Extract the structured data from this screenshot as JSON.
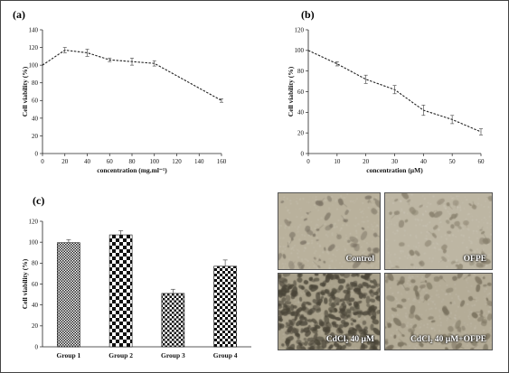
{
  "chart_data": [
    {
      "id": "a",
      "panel_label": "(a)",
      "type": "line",
      "xlabel": "concentration (mg.ml⁻¹)",
      "ylabel": "Cell viability (%)",
      "xlim": [
        0,
        160
      ],
      "ylim": [
        0,
        140
      ],
      "xticks": [
        0,
        20,
        40,
        60,
        80,
        100,
        120,
        140,
        160
      ],
      "yticks": [
        0,
        20,
        40,
        60,
        80,
        100,
        120,
        140
      ],
      "x": [
        0,
        20,
        40,
        60,
        80,
        100,
        120,
        160
      ],
      "y": [
        100,
        117,
        114,
        106,
        104,
        102,
        88,
        60
      ],
      "error": [
        0,
        3,
        4,
        2,
        4,
        3,
        0,
        2
      ],
      "line_style": "dashed",
      "grid": false
    },
    {
      "id": "b",
      "panel_label": "(b)",
      "type": "line",
      "xlabel": "concentration (µM)",
      "ylabel": "Cell viability (%)",
      "xlim": [
        0,
        60
      ],
      "ylim": [
        0,
        120
      ],
      "xticks": [
        0,
        10,
        20,
        30,
        40,
        50,
        60
      ],
      "yticks": [
        0,
        20,
        40,
        60,
        80,
        100,
        120
      ],
      "x": [
        0,
        10,
        20,
        30,
        40,
        50,
        60
      ],
      "y": [
        100,
        87,
        72,
        62,
        42,
        33,
        21
      ],
      "error": [
        0,
        2,
        4,
        4,
        5,
        4,
        3
      ],
      "line_style": "dashed",
      "grid": false
    },
    {
      "id": "c",
      "panel_label": "(c)",
      "type": "bar",
      "xlabel": "",
      "ylabel": "Cell viability (%)",
      "ylim": [
        0,
        120
      ],
      "yticks": [
        0,
        20,
        40,
        60,
        80,
        100,
        120
      ],
      "categories": [
        "Group 1",
        "Group 2",
        "Group 3",
        "Group 4"
      ],
      "values": [
        99.5,
        107,
        51,
        77
      ],
      "error": [
        3,
        4,
        4,
        6
      ],
      "fill_patterns": [
        "dots",
        "checker-large",
        "checker-small",
        "checker-medium"
      ],
      "grid": false
    }
  ],
  "micrographs": [
    {
      "label": "Control",
      "tone": "#b9b19c",
      "cell_color": "#7f7768",
      "density": 60
    },
    {
      "label": "OFPE",
      "tone": "#bdb6a3",
      "cell_color": "#8a826f",
      "density": 55
    },
    {
      "label": "CdCl₂ 40 µM",
      "tone": "#a9a18b",
      "cell_color": "#4a4538",
      "density": 320
    },
    {
      "label": "CdCl₂ 40 µM+OFPE",
      "tone": "#b4ac97",
      "cell_color": "#7a725f",
      "density": 90
    }
  ],
  "colors": {
    "axis": "#222222",
    "line": "#222222",
    "error_bar": "#555555"
  }
}
